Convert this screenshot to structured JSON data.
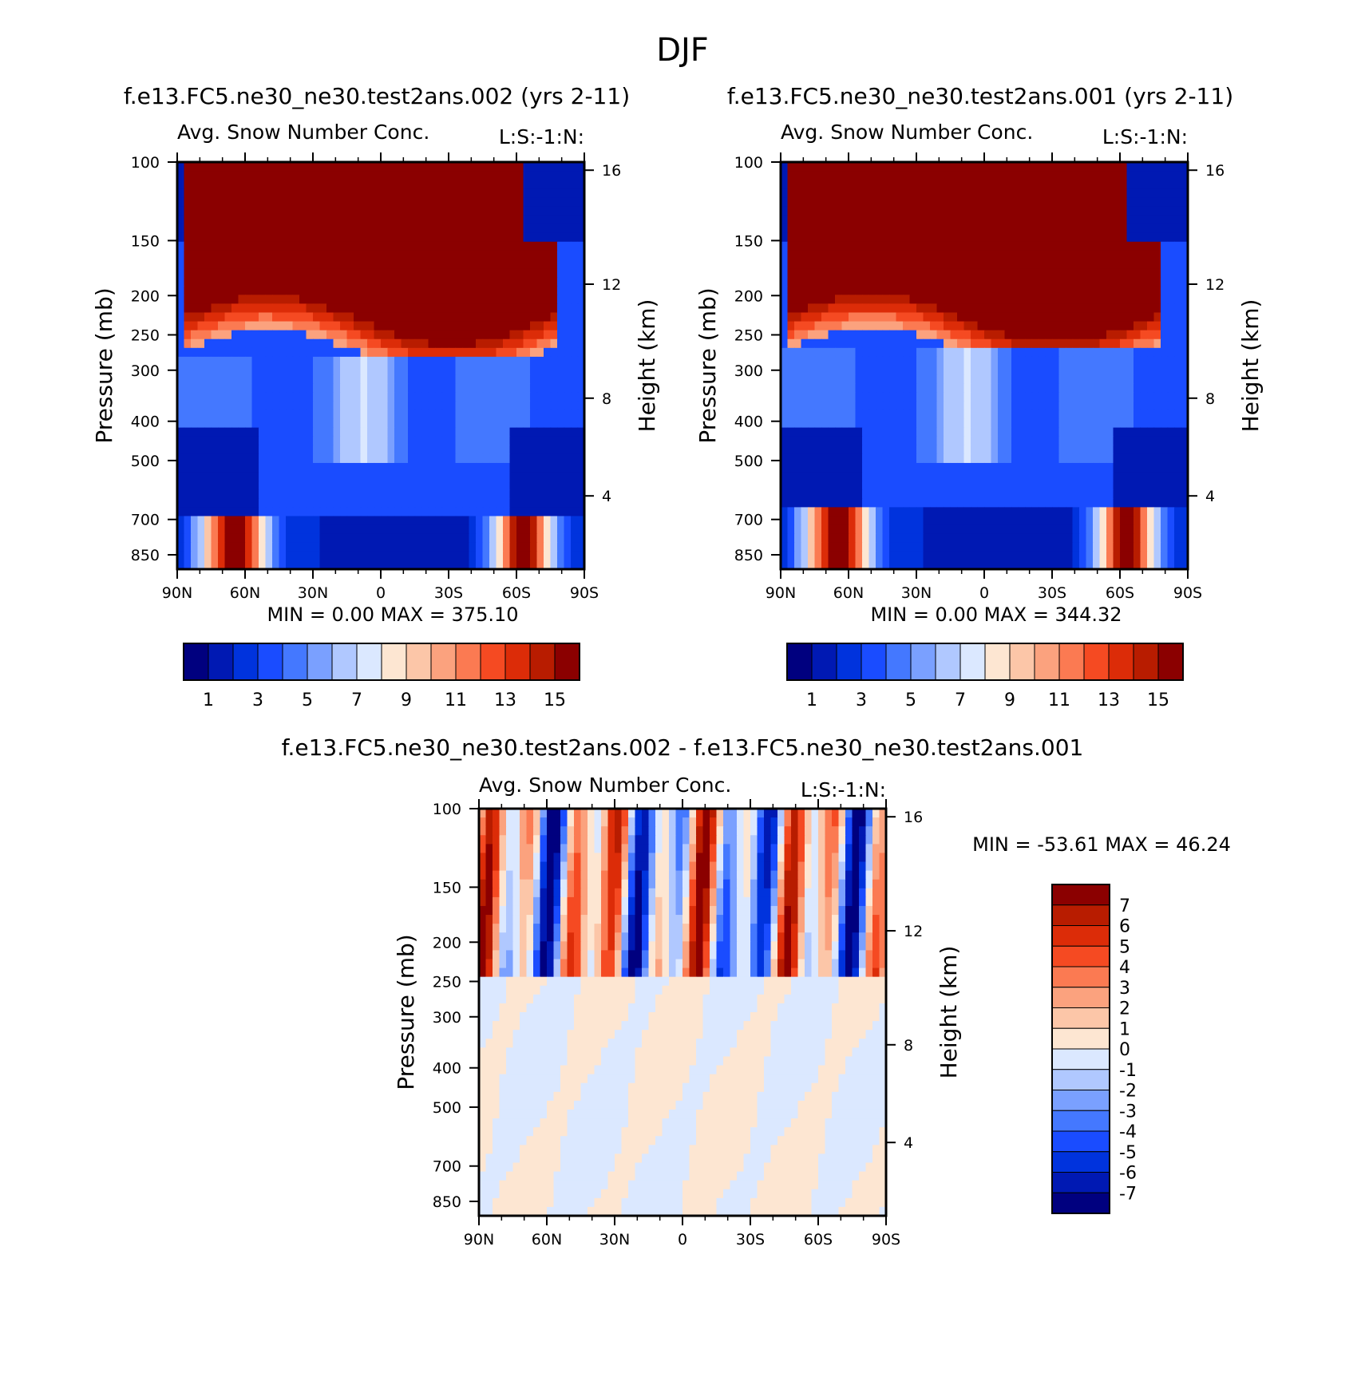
{
  "figure_title": "DJF",
  "panels": [
    {
      "id": "panel-a",
      "case_title": "f.e13.FC5.ne30_ne30.test2ans.002 (yrs 2-11)",
      "var_title": "Avg. Snow Number Conc.",
      "right_label": "L:S:-1:N:",
      "ylabel": "Pressure (mb)",
      "y2label": "Height (km)",
      "min_max": "MIN =    0.00   MAX =  375.10"
    },
    {
      "id": "panel-b",
      "case_title": "f.e13.FC5.ne30_ne30.test2ans.001 (yrs 2-11)",
      "var_title": "Avg. Snow Number Conc.",
      "right_label": "L:S:-1:N:",
      "ylabel": "Pressure (mb)",
      "y2label": "Height (km)",
      "min_max": "MIN =    0.00   MAX =  344.32"
    },
    {
      "id": "panel-diff",
      "case_title": "f.e13.FC5.ne30_ne30.test2ans.002 - f.e13.FC5.ne30_ne30.test2ans.001",
      "var_title": "Avg. Snow Number Conc.",
      "right_label": "L:S:-1:N:",
      "ylabel": "Pressure (mb)",
      "y2label": "Height (km)",
      "min_max": "MIN = -53.61   MAX =   46.24"
    }
  ],
  "colors": {
    "abs_palette": [
      "#00007f",
      "#0019b3",
      "#0033dd",
      "#1a4cff",
      "#4478ff",
      "#7aa0ff",
      "#b0c8ff",
      "#dbe8ff",
      "#fde6d2",
      "#fcc6a8",
      "#fba27e",
      "#fb7a52",
      "#f54a22",
      "#dc2c08",
      "#b81c00",
      "#8b0000"
    ],
    "diff_palette": [
      "#00007f",
      "#0019b3",
      "#0033dd",
      "#1a4cff",
      "#4478ff",
      "#7aa0ff",
      "#b0c8ff",
      "#dbe8ff",
      "#fde6d2",
      "#fcc6a8",
      "#fba27e",
      "#fb7a52",
      "#f54a22",
      "#dc2c08",
      "#b81c00",
      "#8b0000"
    ]
  },
  "chart_data": [
    {
      "type": "heatmap",
      "panel": "panel-a",
      "title": "Avg. Snow Number Conc.",
      "xlabel": "",
      "ylabel": "Pressure (mb)",
      "y2label": "Height (km)",
      "x_ticks": [
        "90N",
        "60N",
        "30N",
        "0",
        "30S",
        "60S",
        "90S"
      ],
      "x_range": [
        90,
        -90
      ],
      "y_ticks": [
        100,
        150,
        200,
        250,
        300,
        400,
        500,
        700,
        850
      ],
      "y_range": [
        100,
        1000
      ],
      "y_scale": "log",
      "y2_ticks": [
        16,
        12,
        8,
        4
      ],
      "min": 0.0,
      "max": 375.1,
      "colorbar_labels": [
        "1",
        "3",
        "5",
        "7",
        "9",
        "11",
        "13",
        "15"
      ],
      "colorbar_levels": [
        1,
        2,
        3,
        4,
        5,
        6,
        7,
        8,
        9,
        10,
        11,
        12,
        13,
        14,
        15
      ]
    },
    {
      "type": "heatmap",
      "panel": "panel-b",
      "title": "Avg. Snow Number Conc.",
      "xlabel": "",
      "ylabel": "Pressure (mb)",
      "y2label": "Height (km)",
      "x_ticks": [
        "90N",
        "60N",
        "30N",
        "0",
        "30S",
        "60S",
        "90S"
      ],
      "x_range": [
        90,
        -90
      ],
      "y_ticks": [
        100,
        150,
        200,
        250,
        300,
        400,
        500,
        700,
        850
      ],
      "y_range": [
        100,
        1000
      ],
      "y_scale": "log",
      "y2_ticks": [
        16,
        12,
        8,
        4
      ],
      "min": 0.0,
      "max": 344.32,
      "colorbar_labels": [
        "1",
        "3",
        "5",
        "7",
        "9",
        "11",
        "13",
        "15"
      ],
      "colorbar_levels": [
        1,
        2,
        3,
        4,
        5,
        6,
        7,
        8,
        9,
        10,
        11,
        12,
        13,
        14,
        15
      ]
    },
    {
      "type": "heatmap",
      "panel": "panel-diff",
      "title": "Avg. Snow Number Conc.",
      "xlabel": "",
      "ylabel": "Pressure (mb)",
      "y2label": "Height (km)",
      "x_ticks": [
        "90N",
        "60N",
        "30N",
        "0",
        "30S",
        "60S",
        "90S"
      ],
      "x_range": [
        90,
        -90
      ],
      "y_ticks": [
        100,
        150,
        200,
        250,
        300,
        400,
        500,
        700,
        850
      ],
      "y_range": [
        100,
        1000
      ],
      "y_scale": "log",
      "y2_ticks": [
        16,
        12,
        8,
        4
      ],
      "min": -53.61,
      "max": 46.24,
      "colorbar_labels": [
        "7",
        "6",
        "5",
        "4",
        "3",
        "2",
        "1",
        "0",
        "-1",
        "-2",
        "-3",
        "-4",
        "-5",
        "-6",
        "-7"
      ],
      "colorbar_levels": [
        7,
        6,
        5,
        4,
        3,
        2,
        1,
        0,
        -1,
        -2,
        -3,
        -4,
        -5,
        -6,
        -7
      ]
    }
  ]
}
